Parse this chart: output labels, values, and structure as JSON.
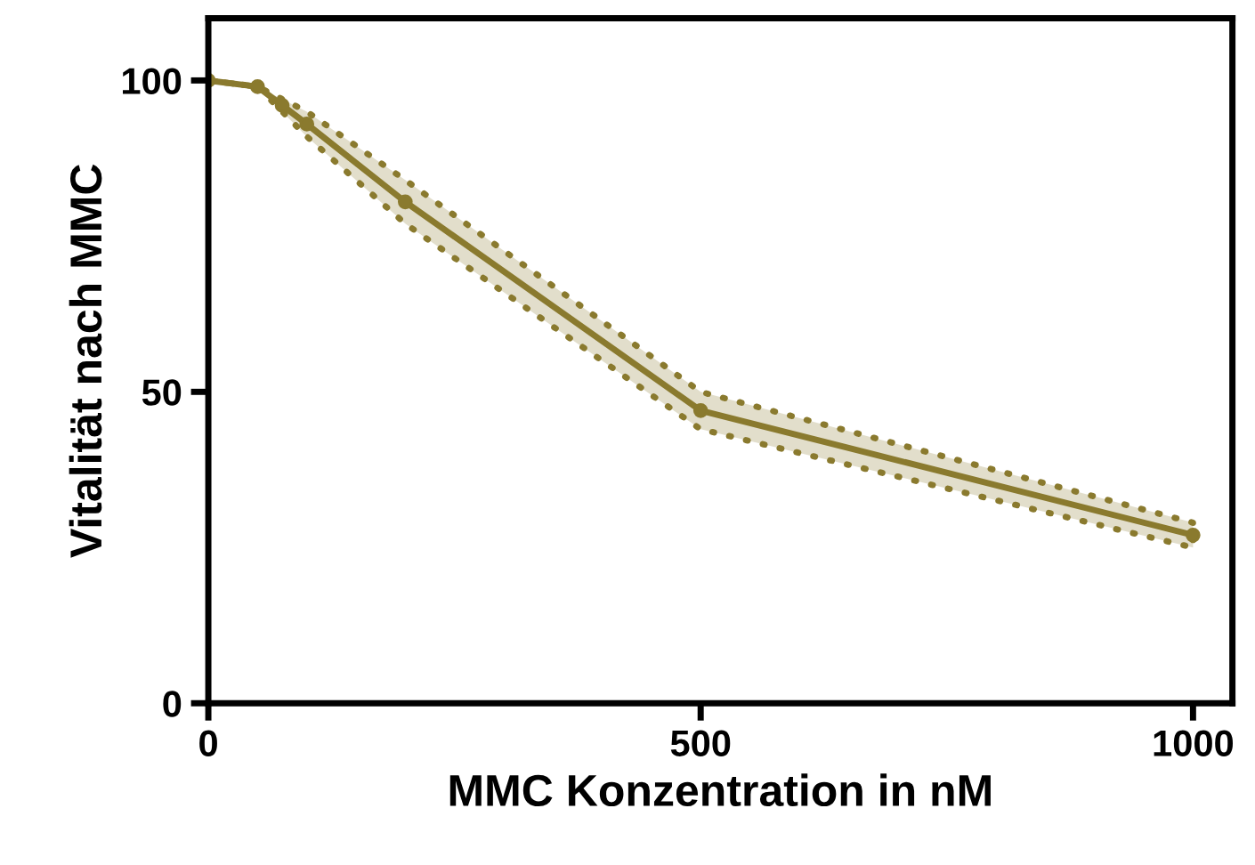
{
  "chart_data": {
    "type": "line",
    "xlabel": "MMC Konzentration in nM",
    "ylabel": "Vitalität nach MMC",
    "x": [
      0,
      50,
      75,
      100,
      200,
      500,
      1000
    ],
    "series": [
      {
        "color": "#8a7a2e",
        "values": [
          100,
          99,
          96,
          93,
          80.5,
          47,
          27
        ],
        "lower": [
          100,
          99,
          95,
          91,
          77,
          44,
          25
        ],
        "upper": [
          100,
          99,
          97,
          95,
          84,
          50,
          29
        ]
      }
    ],
    "xlim": [
      0,
      1040
    ],
    "xticks": [
      0,
      500,
      1000
    ],
    "ylim": [
      0,
      110
    ],
    "yticks": [
      0,
      50,
      100
    ],
    "marker": "circle",
    "grid": false,
    "legend": false
  }
}
